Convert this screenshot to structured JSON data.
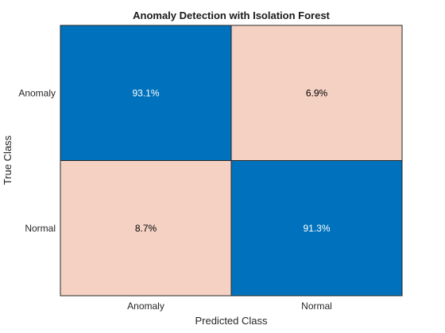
{
  "chart_data": {
    "type": "heatmap",
    "title": "Anomaly Detection with Isolation Forest",
    "xlabel": "Predicted Class",
    "ylabel": "True Class",
    "x_categories": [
      "Anomaly",
      "Normal"
    ],
    "y_categories": [
      "Anomaly",
      "Normal"
    ],
    "values": [
      [
        93.1,
        6.9
      ],
      [
        8.7,
        91.3
      ]
    ],
    "cell_labels": [
      [
        "93.1%",
        "6.9%"
      ],
      [
        "8.7%",
        "91.3%"
      ]
    ],
    "colors": {
      "high": "#0072bd",
      "low": "#f4d1c3",
      "text_on_high": "#ffffff",
      "text_on_low": "#000000",
      "grid": "#262626"
    }
  }
}
